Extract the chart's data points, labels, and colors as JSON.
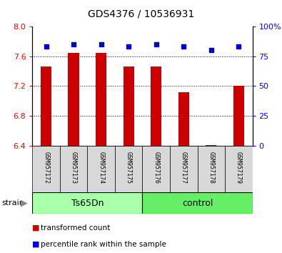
{
  "title": "GDS4376 / 10536931",
  "samples": [
    "GSM957172",
    "GSM957173",
    "GSM957174",
    "GSM957175",
    "GSM957176",
    "GSM957177",
    "GSM957178",
    "GSM957179"
  ],
  "transformed_counts": [
    7.46,
    7.65,
    7.65,
    7.46,
    7.46,
    7.12,
    6.41,
    7.2
  ],
  "percentile_ranks": [
    83,
    85,
    85,
    83,
    85,
    83,
    80,
    83
  ],
  "ylim_left": [
    6.4,
    8.0
  ],
  "ylim_right": [
    0,
    100
  ],
  "yticks_left": [
    6.4,
    6.8,
    7.2,
    7.6,
    8.0
  ],
  "yticks_right": [
    0,
    25,
    50,
    75,
    100
  ],
  "ytick_labels_right": [
    "0",
    "25",
    "50",
    "75",
    "100%"
  ],
  "bar_color": "#cc0000",
  "dot_color": "#0000cc",
  "groups": [
    {
      "label": "Ts65Dn",
      "indices": [
        0,
        1,
        2,
        3
      ],
      "color": "#aaffaa"
    },
    {
      "label": "control",
      "indices": [
        4,
        5,
        6,
        7
      ],
      "color": "#66ee66"
    }
  ],
  "group_label": "strain",
  "sample_bg": "#d8d8d8",
  "plot_bg": "#ffffff",
  "legend_items": [
    {
      "label": "transformed count",
      "color": "#cc0000"
    },
    {
      "label": "percentile rank within the sample",
      "color": "#0000cc"
    }
  ],
  "grid_lines": [
    6.8,
    7.2,
    7.6
  ],
  "title_fontsize": 10,
  "tick_fontsize": 8,
  "sample_fontsize": 6,
  "group_fontsize": 9
}
